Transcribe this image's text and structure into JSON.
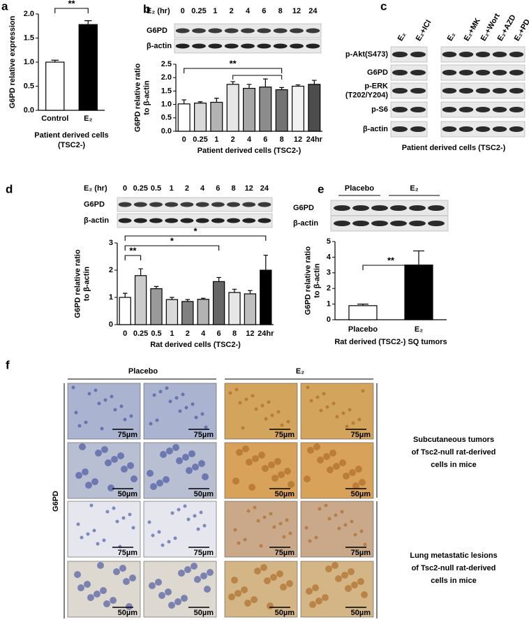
{
  "panel_labels": [
    "a",
    "b",
    "c",
    "d",
    "e",
    "f"
  ],
  "chart_data": [
    {
      "type": "bar",
      "ylabel": [
        "G6PD relative expression"
      ],
      "categories": [
        "Control",
        "E₂"
      ],
      "values": [
        1.0,
        1.78
      ],
      "errors": [
        0.04,
        0.08
      ],
      "colors": [
        "#ffffff",
        "#000000"
      ],
      "ylim": [
        0,
        2
      ],
      "yticks": [
        {
          "value": 0,
          "label": "0.0"
        },
        {
          "value": 0.5,
          "label": "0.5"
        },
        {
          "value": 1,
          "label": "1.0"
        },
        {
          "value": 1.5,
          "label": "1.5"
        },
        {
          "value": 2,
          "label": "2.0"
        }
      ],
      "xlabel": [
        "Patient derived cells",
        "(TSC2-)"
      ],
      "annotations": [
        {
          "text": "**",
          "between": [
            "Control",
            "E₂"
          ]
        }
      ]
    },
    {
      "type": "bar",
      "ylabel": [
        "G6PD relative ratio",
        "to β-actin"
      ],
      "categories": [
        "0",
        "0.25",
        "1",
        "2",
        "4",
        "6",
        "8",
        "12",
        "24hr"
      ],
      "values": [
        1.02,
        1.05,
        1.08,
        1.75,
        1.6,
        1.65,
        1.55,
        1.68,
        1.75
      ],
      "errors": [
        0.15,
        0.05,
        0.15,
        0.1,
        0.15,
        0.3,
        0.08,
        0.05,
        0.15
      ],
      "colors": [
        "#ffffff",
        "#d9d9d9",
        "#b3b3b3",
        "#e6e6e6",
        "#a6a6a6",
        "#8c8c8c",
        "#737373",
        "#f2f2f2",
        "#4d4d4d"
      ],
      "ylim": [
        0,
        2.5
      ],
      "yticks": [
        {
          "value": 0,
          "label": "0.0"
        },
        {
          "value": 0.5,
          "label": "0.5"
        },
        {
          "value": 1,
          "label": "1.0"
        },
        {
          "value": 1.5,
          "label": "1.5"
        },
        {
          "value": 2,
          "label": "2.0"
        },
        {
          "value": 2.5,
          "label": "2.5"
        }
      ],
      "xlabel": [
        "Patient derived cells (TSC2-)"
      ],
      "annotations": [
        {
          "text": "**",
          "between": [
            "0",
            "8"
          ]
        }
      ]
    },
    {
      "type": "bar",
      "ylabel": [
        "G6PD relative ratio",
        "to β-actin"
      ],
      "categories": [
        "0",
        "0.25",
        "0.5",
        "1",
        "2",
        "4",
        "6",
        "8",
        "12",
        "24hr"
      ],
      "values": [
        1.0,
        1.8,
        1.32,
        0.92,
        0.85,
        0.93,
        1.58,
        1.18,
        1.13,
        2.0
      ],
      "errors": [
        0.15,
        0.25,
        0.08,
        0.08,
        0.07,
        0.04,
        0.15,
        0.12,
        0.12,
        0.55
      ],
      "colors": [
        "#ffffff",
        "#cccccc",
        "#999999",
        "#d9d9d9",
        "#808080",
        "#b3b3b3",
        "#666666",
        "#e6e6e6",
        "#bfbfbf",
        "#000000"
      ],
      "ylim": [
        0,
        3
      ],
      "yticks": [
        0,
        1,
        2,
        3
      ],
      "xlabel": [
        "Rat derived cells (TSC2-)"
      ],
      "annotations": [
        {
          "text": "**",
          "between": [
            "0",
            "0.25"
          ]
        },
        {
          "text": "*",
          "between": [
            "0",
            "6"
          ]
        },
        {
          "text": "*",
          "between": [
            "0",
            "24hr"
          ]
        }
      ]
    },
    {
      "type": "bar",
      "ylabel": [
        "G6PD relative ratio",
        "to β-actin"
      ],
      "categories": [
        "Placebo",
        "E₂"
      ],
      "values": [
        0.9,
        3.5
      ],
      "errors": [
        0.1,
        0.9
      ],
      "colors": [
        "#ffffff",
        "#000000"
      ],
      "ylim": [
        0,
        5
      ],
      "yticks": [
        0,
        1,
        2,
        3,
        4,
        5
      ],
      "xlabel": [
        "Rat derived (TSC2-) SQ tumors"
      ],
      "annotations": [
        {
          "text": "**",
          "between": [
            "Placebo",
            "E₂"
          ]
        }
      ]
    }
  ],
  "blots": {
    "b": {
      "header": "E₂ (hr)",
      "lanes": [
        "0",
        "0.25",
        "1",
        "2",
        "4",
        "6",
        "8",
        "12",
        "24"
      ],
      "rows": [
        "G6PD",
        "β-actin"
      ]
    },
    "c": {
      "groups": [
        [
          "E₂",
          "E₂+ICI"
        ],
        [
          "E₂",
          "E₂+MK",
          "E₂+Wort",
          "E₂+AZD",
          "E₂+PD"
        ]
      ],
      "rows": [
        [
          "p-Akt(S473)"
        ],
        [
          "G6PD"
        ],
        [
          "p-ERK",
          "(T202/Y204)"
        ],
        [
          "p-S6"
        ],
        [
          "β-actin"
        ]
      ],
      "caption": "Patient derived cells (TSC2-)"
    },
    "d": {
      "header": "E₂ (hr)",
      "lanes": [
        "0",
        "0.25",
        "0.5",
        "1",
        "2",
        "4",
        "6",
        "8",
        "12",
        "24"
      ],
      "rows": [
        "G6PD",
        "β-actin"
      ]
    },
    "e": {
      "groups": [
        "Placebo",
        "E₂"
      ],
      "rows": [
        "G6PD",
        "β-actin"
      ]
    }
  },
  "histology": {
    "groups": [
      "Placebo",
      "E₂"
    ],
    "stain": "G6PD",
    "scale_bars": [
      "75µm",
      "50µm"
    ],
    "row_labels": [
      [
        "Subcutaneous tumors",
        "of Tsc2-null rat-derived",
        "cells in mice"
      ],
      [
        "Lung metastatic lesions",
        "of Tsc2-null rat-derived",
        "cells in mice"
      ]
    ]
  }
}
